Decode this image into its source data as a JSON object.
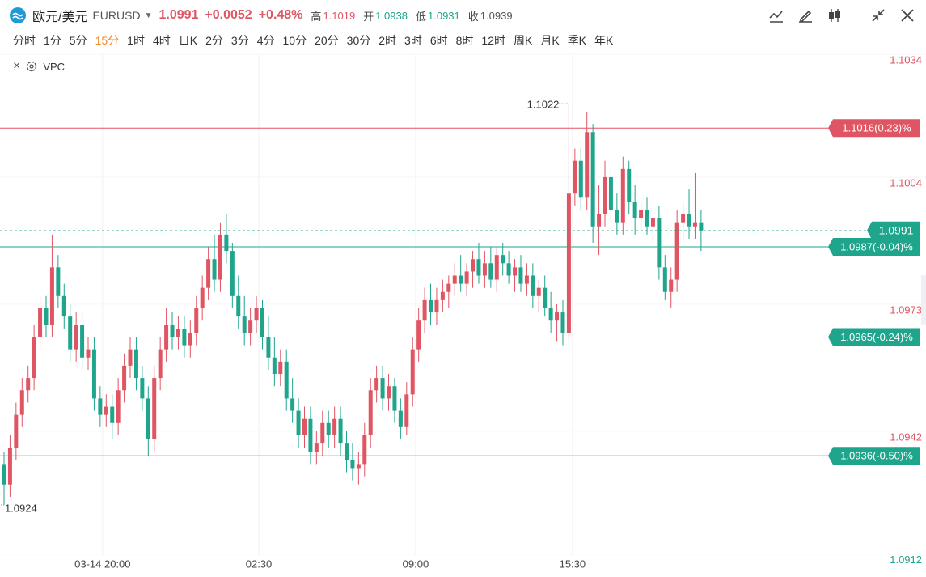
{
  "toolbar": {
    "name": "欧元/美元",
    "symbol": "EURUSD",
    "price": 1.0991,
    "change": "+0.0052",
    "change_pct": "+0.48%",
    "stats": [
      {
        "label": "高",
        "value": 1.1019
      },
      {
        "label": "开",
        "value": 1.0938
      },
      {
        "label": "低",
        "value": 1.0931
      },
      {
        "label": "收",
        "value": 1.0939
      }
    ],
    "intervals": [
      "分时",
      "1分",
      "5分",
      "15分",
      "1时",
      "4时",
      "日K",
      "2分",
      "3分",
      "4分",
      "10分",
      "20分",
      "30分",
      "2时",
      "3时",
      "6时",
      "8时",
      "12时",
      "周K",
      "月K",
      "季K",
      "年K"
    ],
    "active_interval": 3,
    "indicator": "VPC"
  },
  "chart_data": {
    "type": "candlestick",
    "up_color": "#e05563",
    "down_color": "#1ea58c",
    "xlim": [
      -0.67,
      153.43
    ],
    "ylim": [
      1.0909,
      1.1035
    ],
    "yticks": [
      1.0912,
      1.0942,
      1.0973,
      1.1004,
      1.1034
    ],
    "xticks": [
      {
        "value": 16.4,
        "label": "03-14 20:00"
      },
      {
        "value": 42.4,
        "label": "02:30"
      },
      {
        "value": 68.5,
        "label": "09:00"
      },
      {
        "value": 94.6,
        "label": "15:30"
      }
    ],
    "price_lines": [
      {
        "value": 1.1016,
        "label": "1.1016(0.23)%",
        "color": "#e05563"
      },
      {
        "value": 1.0987,
        "label": "1.0987(-0.04)%",
        "color": "#1ea58c"
      },
      {
        "value": 1.0965,
        "label": "1.0965(-0.24)%",
        "color": "#1ea58c"
      },
      {
        "value": 1.0936,
        "label": "1.0936(-0.50)%",
        "color": "#1ea58c"
      }
    ],
    "current_price": 1.0991,
    "annotations": [
      {
        "value": 1.1022,
        "label": "1.1022"
      },
      {
        "value": 1.0924,
        "label": "1.0924"
      }
    ],
    "ohlc": [
      [
        1.0934,
        1.0937,
        1.0924,
        1.0929
      ],
      [
        1.0929,
        1.0941,
        1.0926,
        1.0938
      ],
      [
        1.0938,
        1.0949,
        1.0935,
        1.0946
      ],
      [
        1.0946,
        1.0955,
        1.0943,
        1.0952
      ],
      [
        1.0952,
        1.0958,
        1.0949,
        1.0955
      ],
      [
        1.0955,
        1.0968,
        1.0952,
        1.0965
      ],
      [
        1.0965,
        1.0975,
        1.0962,
        1.0972
      ],
      [
        1.0972,
        1.0975,
        1.0965,
        1.0968
      ],
      [
        1.0968,
        1.099,
        1.0965,
        1.0982
      ],
      [
        1.0982,
        1.0985,
        1.0972,
        1.0975
      ],
      [
        1.0975,
        1.0978,
        1.0967,
        1.097
      ],
      [
        1.097,
        1.0973,
        1.0959,
        1.0962
      ],
      [
        1.0962,
        1.0971,
        1.0959,
        1.0968
      ],
      [
        1.0968,
        1.0971,
        1.0957,
        1.096
      ],
      [
        1.096,
        1.0965,
        1.0957,
        1.0962
      ],
      [
        1.0962,
        1.0965,
        1.0947,
        1.095
      ],
      [
        1.095,
        1.0953,
        1.0943,
        1.0946
      ],
      [
        1.0946,
        1.0951,
        1.0943,
        1.0948
      ],
      [
        1.0948,
        1.0951,
        1.094,
        1.0944
      ],
      [
        1.0944,
        1.0955,
        1.0941,
        1.0952
      ],
      [
        1.0952,
        1.0961,
        1.0949,
        1.0958
      ],
      [
        1.0958,
        1.0965,
        1.0955,
        1.0962
      ],
      [
        1.0962,
        1.0965,
        1.0952,
        1.0955
      ],
      [
        1.0955,
        1.0958,
        1.0947,
        1.095
      ],
      [
        1.095,
        1.0953,
        1.0936,
        1.094
      ],
      [
        1.094,
        1.0958,
        1.0937,
        1.0955
      ],
      [
        1.0955,
        1.0965,
        1.0952,
        1.0962
      ],
      [
        1.0962,
        1.0972,
        1.0959,
        1.0968
      ],
      [
        1.0968,
        1.0971,
        1.0962,
        1.0965
      ],
      [
        1.0965,
        1.097,
        1.0962,
        1.0967
      ],
      [
        1.0967,
        1.097,
        1.096,
        1.0963
      ],
      [
        1.0963,
        1.0969,
        1.096,
        1.0966
      ],
      [
        1.0966,
        1.0975,
        1.0963,
        1.0972
      ],
      [
        1.0972,
        1.098,
        1.0969,
        1.0977
      ],
      [
        1.0977,
        1.0987,
        1.0974,
        1.0984
      ],
      [
        1.0984,
        1.099,
        1.0976,
        1.0979
      ],
      [
        1.0979,
        1.0993,
        1.0976,
        1.099
      ],
      [
        1.099,
        1.0995,
        1.0983,
        1.0986
      ],
      [
        1.0986,
        1.0988,
        1.0972,
        1.0975
      ],
      [
        1.0975,
        1.098,
        1.0967,
        1.097
      ],
      [
        1.097,
        1.0975,
        1.0963,
        1.0966
      ],
      [
        1.0966,
        1.0972,
        1.0963,
        1.0969
      ],
      [
        1.0969,
        1.0975,
        1.0966,
        1.0972
      ],
      [
        1.0972,
        1.0974,
        1.0962,
        1.0965
      ],
      [
        1.0965,
        1.097,
        1.0957,
        1.096
      ],
      [
        1.096,
        1.0965,
        1.0953,
        1.0956
      ],
      [
        1.0956,
        1.0962,
        1.0953,
        1.0959
      ],
      [
        1.0959,
        1.0962,
        1.0947,
        1.095
      ],
      [
        1.095,
        1.0955,
        1.0944,
        1.0947
      ],
      [
        1.0947,
        1.095,
        1.0938,
        1.0941
      ],
      [
        1.0941,
        1.0948,
        1.0938,
        1.0945
      ],
      [
        1.0945,
        1.0948,
        1.0934,
        1.0937
      ],
      [
        1.0937,
        1.0942,
        1.0934,
        1.0939
      ],
      [
        1.0939,
        1.0947,
        1.0936,
        1.0944
      ],
      [
        1.0944,
        1.0947,
        1.0938,
        1.0941
      ],
      [
        1.0941,
        1.0948,
        1.0938,
        1.0945
      ],
      [
        1.0945,
        1.0948,
        1.0936,
        1.0939
      ],
      [
        1.0939,
        1.0942,
        1.0932,
        1.0935
      ],
      [
        1.0935,
        1.0939,
        1.093,
        1.0933
      ],
      [
        1.0933,
        1.0937,
        1.0929,
        1.0934
      ],
      [
        1.0934,
        1.0944,
        1.0931,
        1.0941
      ],
      [
        1.0941,
        1.0955,
        1.0938,
        1.0952
      ],
      [
        1.0952,
        1.0958,
        1.0949,
        1.0955
      ],
      [
        1.0955,
        1.0958,
        1.0947,
        1.095
      ],
      [
        1.095,
        1.0956,
        1.0947,
        1.0953
      ],
      [
        1.0953,
        1.0955,
        1.0944,
        1.0947
      ],
      [
        1.0947,
        1.095,
        1.094,
        1.0943
      ],
      [
        1.0943,
        1.0954,
        1.0941,
        1.0951
      ],
      [
        1.0951,
        1.0965,
        1.0948,
        1.0962
      ],
      [
        1.0962,
        1.0972,
        1.0959,
        1.0969
      ],
      [
        1.0969,
        1.0977,
        1.0966,
        1.0974
      ],
      [
        1.0974,
        1.0978,
        1.0968,
        1.0971
      ],
      [
        1.0971,
        1.0977,
        1.0968,
        1.0974
      ],
      [
        1.0974,
        1.0979,
        1.0971,
        1.0976
      ],
      [
        1.0976,
        1.098,
        1.0972,
        1.0978
      ],
      [
        1.0978,
        1.0983,
        1.0975,
        1.098
      ],
      [
        1.098,
        1.0985,
        1.0976,
        1.0978
      ],
      [
        1.0978,
        1.0983,
        1.0975,
        1.0981
      ],
      [
        1.0981,
        1.0986,
        1.0977,
        1.0984
      ],
      [
        1.0984,
        1.0988,
        1.0978,
        1.098
      ],
      [
        1.098,
        1.0986,
        1.0977,
        1.0983
      ],
      [
        1.0983,
        1.0987,
        1.0977,
        1.0979
      ],
      [
        1.0979,
        1.0987,
        1.0976,
        1.0985
      ],
      [
        1.0985,
        1.0988,
        1.098,
        1.0983
      ],
      [
        1.0983,
        1.0986,
        1.0978,
        1.098
      ],
      [
        1.098,
        1.0984,
        1.0976,
        1.0982
      ],
      [
        1.0982,
        1.0985,
        1.0976,
        1.0978
      ],
      [
        1.0978,
        1.0983,
        1.0975,
        1.098
      ],
      [
        1.098,
        1.0983,
        1.0972,
        1.0975
      ],
      [
        1.0975,
        1.0979,
        1.0971,
        1.0977
      ],
      [
        1.0977,
        1.098,
        1.097,
        1.0972
      ],
      [
        1.0972,
        1.0976,
        1.0966,
        1.0969
      ],
      [
        1.0969,
        1.0973,
        1.0964,
        1.0971
      ],
      [
        1.0971,
        1.0974,
        1.0963,
        1.0966
      ],
      [
        1.0966,
        1.1022,
        1.0964,
        1.1
      ],
      [
        1.1,
        1.1011,
        1.0997,
        1.1008
      ],
      [
        1.1008,
        1.1011,
        1.0996,
        1.0999
      ],
      [
        1.0999,
        1.102,
        1.0996,
        1.1015
      ],
      [
        1.1015,
        1.1017,
        1.0988,
        1.0992
      ],
      [
        1.0992,
        1.1002,
        1.0985,
        1.0995
      ],
      [
        1.0995,
        1.1008,
        1.0992,
        1.1004
      ],
      [
        1.1004,
        1.1006,
        1.0993,
        1.0996
      ],
      [
        1.0996,
        1.1,
        1.099,
        1.0993
      ],
      [
        1.0993,
        1.1009,
        1.099,
        1.1006
      ],
      [
        1.1006,
        1.1008,
        1.0995,
        1.0998
      ],
      [
        1.0998,
        1.1002,
        1.099,
        1.0994
      ],
      [
        1.0994,
        1.0998,
        1.0991,
        1.0996
      ],
      [
        1.0996,
        1.0999,
        1.099,
        1.0992
      ],
      [
        1.0992,
        1.0996,
        1.0988,
        1.0994
      ],
      [
        1.0994,
        1.0997,
        1.0979,
        1.0982
      ],
      [
        1.0982,
        1.0985,
        1.0974,
        1.0976
      ],
      [
        1.0976,
        1.0982,
        1.0972,
        1.0979
      ],
      [
        1.0979,
        1.0996,
        1.0976,
        1.0993
      ],
      [
        1.0993,
        1.0998,
        1.0988,
        1.0995
      ],
      [
        1.0995,
        1.1001,
        1.0989,
        1.0992
      ],
      [
        1.0992,
        1.1005,
        1.0989,
        1.0993
      ],
      [
        1.0993,
        1.0996,
        1.0986,
        1.0991
      ]
    ]
  }
}
